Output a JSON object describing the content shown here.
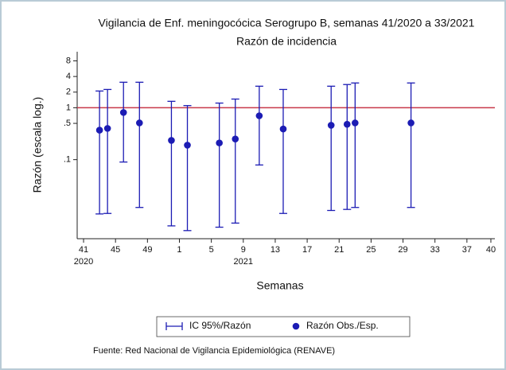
{
  "chart_data": {
    "type": "errorbar_scatter",
    "title": "Vigilancia de Enf. meningocócica Serogrupo B, semanas 41/2020 a 33/2021",
    "subtitle": "Razón de incidencia",
    "y_label": "Razón (escala log.)",
    "x_label": "Semanas",
    "source": "Fuente: Red Nacional de Vigilancia Epidemiológica (RENAVE)",
    "log_y": true,
    "ylim": [
      0.003,
      12
    ],
    "yticks": [
      8,
      4,
      2,
      1,
      {
        "value": 0.5,
        "label": ".5"
      },
      {
        "value": 0.1,
        "label": ".1"
      }
    ],
    "xlim": [
      -0.8,
      51.5
    ],
    "xticks": [
      {
        "value": 0,
        "label": "41"
      },
      {
        "value": 4,
        "label": "45"
      },
      {
        "value": 8,
        "label": "49"
      },
      {
        "value": 12,
        "label": "1"
      },
      {
        "value": 16,
        "label": "5"
      },
      {
        "value": 20,
        "label": "9"
      },
      {
        "value": 24,
        "label": "13"
      },
      {
        "value": 28,
        "label": "17"
      },
      {
        "value": 32,
        "label": "21"
      },
      {
        "value": 36,
        "label": "25"
      },
      {
        "value": 40,
        "label": "29"
      },
      {
        "value": 44,
        "label": "33"
      },
      {
        "value": 48,
        "label": "37"
      },
      {
        "value": 51,
        "label": "40"
      }
    ],
    "x_year_labels": [
      {
        "value": 0,
        "label": "2020"
      },
      {
        "value": 20,
        "label": "2021"
      }
    ],
    "reference_line": {
      "value": 1,
      "color": "#c8384a"
    },
    "series": [
      {
        "name": "IC 95%/Razón",
        "color": "#1c1cb4"
      },
      {
        "name": "Razón Obs./Esp.",
        "color": "#1c1cb4"
      }
    ],
    "x": [
      2,
      3,
      5,
      7,
      11,
      13,
      17,
      19,
      22,
      25,
      31,
      33,
      34,
      41
    ],
    "values": [
      0.37,
      0.4,
      0.81,
      0.51,
      0.235,
      0.19,
      0.21,
      0.25,
      0.7,
      0.39,
      0.46,
      0.48,
      0.51,
      0.51
    ],
    "lower": [
      0.009,
      0.0092,
      0.09,
      0.012,
      0.0053,
      0.0043,
      0.005,
      0.006,
      0.079,
      0.0092,
      0.0105,
      0.011,
      0.012,
      0.012
    ],
    "upper": [
      2.1,
      2.25,
      3.1,
      3.1,
      1.33,
      1.1,
      1.23,
      1.47,
      2.6,
      2.25,
      2.6,
      2.8,
      3.0,
      3.0
    ]
  }
}
